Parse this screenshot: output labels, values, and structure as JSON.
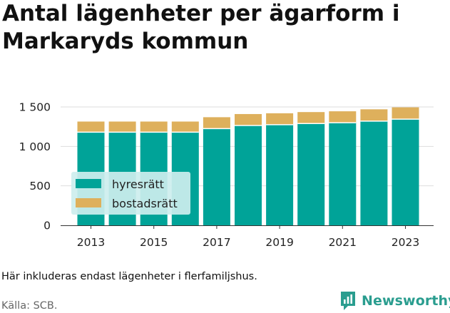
{
  "title": "Antal lägenheter per ägarform i Markaryds kommun",
  "note": "Här inkluderas endast lägenheter i flerfamiljshus.",
  "source": "Källa: SCB.",
  "brand": "Newsworthy",
  "colors": {
    "hyresratt": "#00a398",
    "bostadsratt": "#deb05c",
    "grid": "#dddddd",
    "legend_bg": "#cdeeee"
  },
  "chart_data": {
    "type": "bar",
    "stacked": true,
    "categories": [
      "2013",
      "2014",
      "2015",
      "2016",
      "2017",
      "2018",
      "2019",
      "2020",
      "2021",
      "2022",
      "2023"
    ],
    "x_tick_labels": [
      "2013",
      "",
      "2015",
      "",
      "2017",
      "",
      "2019",
      "",
      "2021",
      "",
      "2023"
    ],
    "series": [
      {
        "name": "hyresrätt",
        "values": [
          1180,
          1180,
          1180,
          1180,
          1225,
          1265,
          1275,
          1290,
          1300,
          1320,
          1345
        ]
      },
      {
        "name": "bostadsrätt",
        "values": [
          135,
          135,
          135,
          135,
          145,
          145,
          145,
          145,
          145,
          150,
          150
        ]
      }
    ],
    "ylim": [
      0,
      1500
    ],
    "y_ticks": [
      0,
      500,
      1000,
      1500
    ],
    "y_tick_labels": [
      "0",
      "500",
      "1 000",
      "1 500"
    ],
    "grid": true,
    "legend_position": "bottom-left"
  }
}
